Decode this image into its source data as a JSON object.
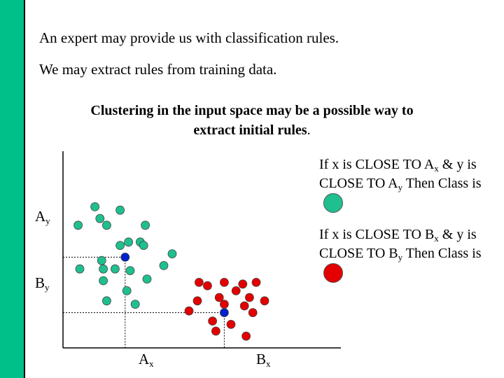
{
  "slide": {
    "line1": "An expert may provide us with classification rules.",
    "line2": "We may extract rules from training data.",
    "heading_l1": "Clustering in the input space may be a possible way to",
    "heading_l2": "extract initial rules",
    "heading_end": "."
  },
  "rules": {
    "a": {
      "p1": "If x is CLOSE TO A",
      "s1": "x",
      "p2": " & y is CLOSE TO A",
      "s2": "y",
      "p3": " Then Class is",
      "color": "#1fbf8f"
    },
    "b": {
      "p1": "If x is CLOSE TO B",
      "s1": "x",
      "p2": " & y is CLOSE TO B",
      "s2": "y",
      "p3": " Then Class is",
      "color": "#e30000"
    }
  },
  "labels": {
    "ay": {
      "base": "A",
      "sub": "y"
    },
    "by": {
      "base": "B",
      "sub": "y"
    },
    "ax": {
      "base": "A",
      "sub": "x"
    },
    "bx": {
      "base": "B",
      "sub": "x"
    }
  },
  "colors": {
    "sidebar": "#00c08a",
    "green": "#1fbf8f",
    "red": "#e30000",
    "center": "#0022cc"
  },
  "chart_data": {
    "type": "scatter",
    "grid": false,
    "series": [
      {
        "color": "#1fbf8f",
        "points": [
          [
            0.09,
            0.73
          ],
          [
            0.19,
            0.84
          ],
          [
            0.22,
            0.77
          ],
          [
            0.26,
            0.73
          ],
          [
            0.34,
            0.82
          ],
          [
            0.46,
            0.63
          ],
          [
            0.49,
            0.73
          ],
          [
            0.23,
            0.52
          ],
          [
            0.34,
            0.61
          ],
          [
            0.39,
            0.63
          ],
          [
            0.48,
            0.61
          ],
          [
            0.65,
            0.56
          ],
          [
            0.6,
            0.49
          ],
          [
            0.1,
            0.47
          ],
          [
            0.24,
            0.47
          ],
          [
            0.31,
            0.47
          ],
          [
            0.4,
            0.46
          ],
          [
            0.5,
            0.41
          ],
          [
            0.24,
            0.4
          ],
          [
            0.38,
            0.34
          ],
          [
            0.26,
            0.28
          ],
          [
            0.43,
            0.26
          ]
        ]
      },
      {
        "color": "#e30000",
        "points": [
          [
            0.81,
            0.39
          ],
          [
            0.86,
            0.37
          ],
          [
            0.96,
            0.39
          ],
          [
            1.07,
            0.38
          ],
          [
            1.15,
            0.39
          ],
          [
            1.03,
            0.34
          ],
          [
            1.11,
            0.3
          ],
          [
            0.8,
            0.28
          ],
          [
            0.93,
            0.3
          ],
          [
            0.96,
            0.26
          ],
          [
            1.08,
            0.25
          ],
          [
            1.2,
            0.28
          ],
          [
            0.75,
            0.22
          ],
          [
            1.13,
            0.21
          ],
          [
            0.89,
            0.16
          ],
          [
            1.0,
            0.14
          ],
          [
            0.91,
            0.1
          ],
          [
            1.09,
            0.07
          ]
        ]
      }
    ],
    "centers": [
      {
        "x": 0.37,
        "y": 0.54,
        "color": "#0022cc"
      },
      {
        "x": 0.96,
        "y": 0.21,
        "color": "#0022cc"
      }
    ]
  }
}
